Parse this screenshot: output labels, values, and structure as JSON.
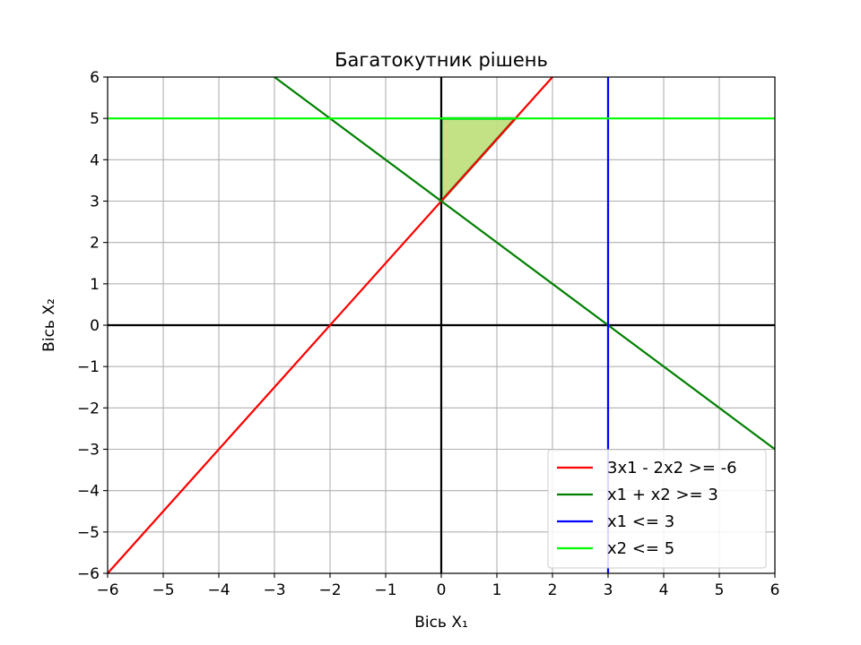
{
  "chart_data": {
    "type": "line",
    "title": "Багатокутник рішень",
    "xlabel": "Вісь X₁",
    "ylabel": "Вісь X₂",
    "xlim": [
      -6,
      6
    ],
    "ylim": [
      -6,
      6
    ],
    "xticks": [
      -6,
      -5,
      -4,
      -3,
      -2,
      -1,
      0,
      1,
      2,
      3,
      4,
      5,
      6
    ],
    "yticks": [
      -6,
      -5,
      -4,
      -3,
      -2,
      -1,
      0,
      1,
      2,
      3,
      4,
      5,
      6
    ],
    "grid": true,
    "legend_position": "lower-right",
    "series": [
      {
        "name": "3x1 - 2x2 >= -6",
        "color": "#ff0000",
        "x": [
          -6,
          2
        ],
        "y": [
          -6,
          6
        ]
      },
      {
        "name": "x1 + x2 >= 3",
        "color": "#008000",
        "x": [
          -3,
          6
        ],
        "y": [
          6,
          -3
        ]
      },
      {
        "name": "x1 <= 3",
        "color": "#0000ff",
        "x": [
          3,
          3
        ],
        "y": [
          -6,
          6
        ]
      },
      {
        "name": "x2 <= 5",
        "color": "#00ff00",
        "x": [
          -6,
          6
        ],
        "y": [
          5,
          5
        ]
      }
    ],
    "feasible_region": {
      "fill": "#c0e080",
      "edge": "#22b04a",
      "vertices": [
        [
          0,
          3
        ],
        [
          0,
          5
        ],
        [
          1.333,
          5
        ]
      ]
    },
    "reference_axes": {
      "color": "#000000",
      "x0": 0,
      "y0": 0
    }
  }
}
